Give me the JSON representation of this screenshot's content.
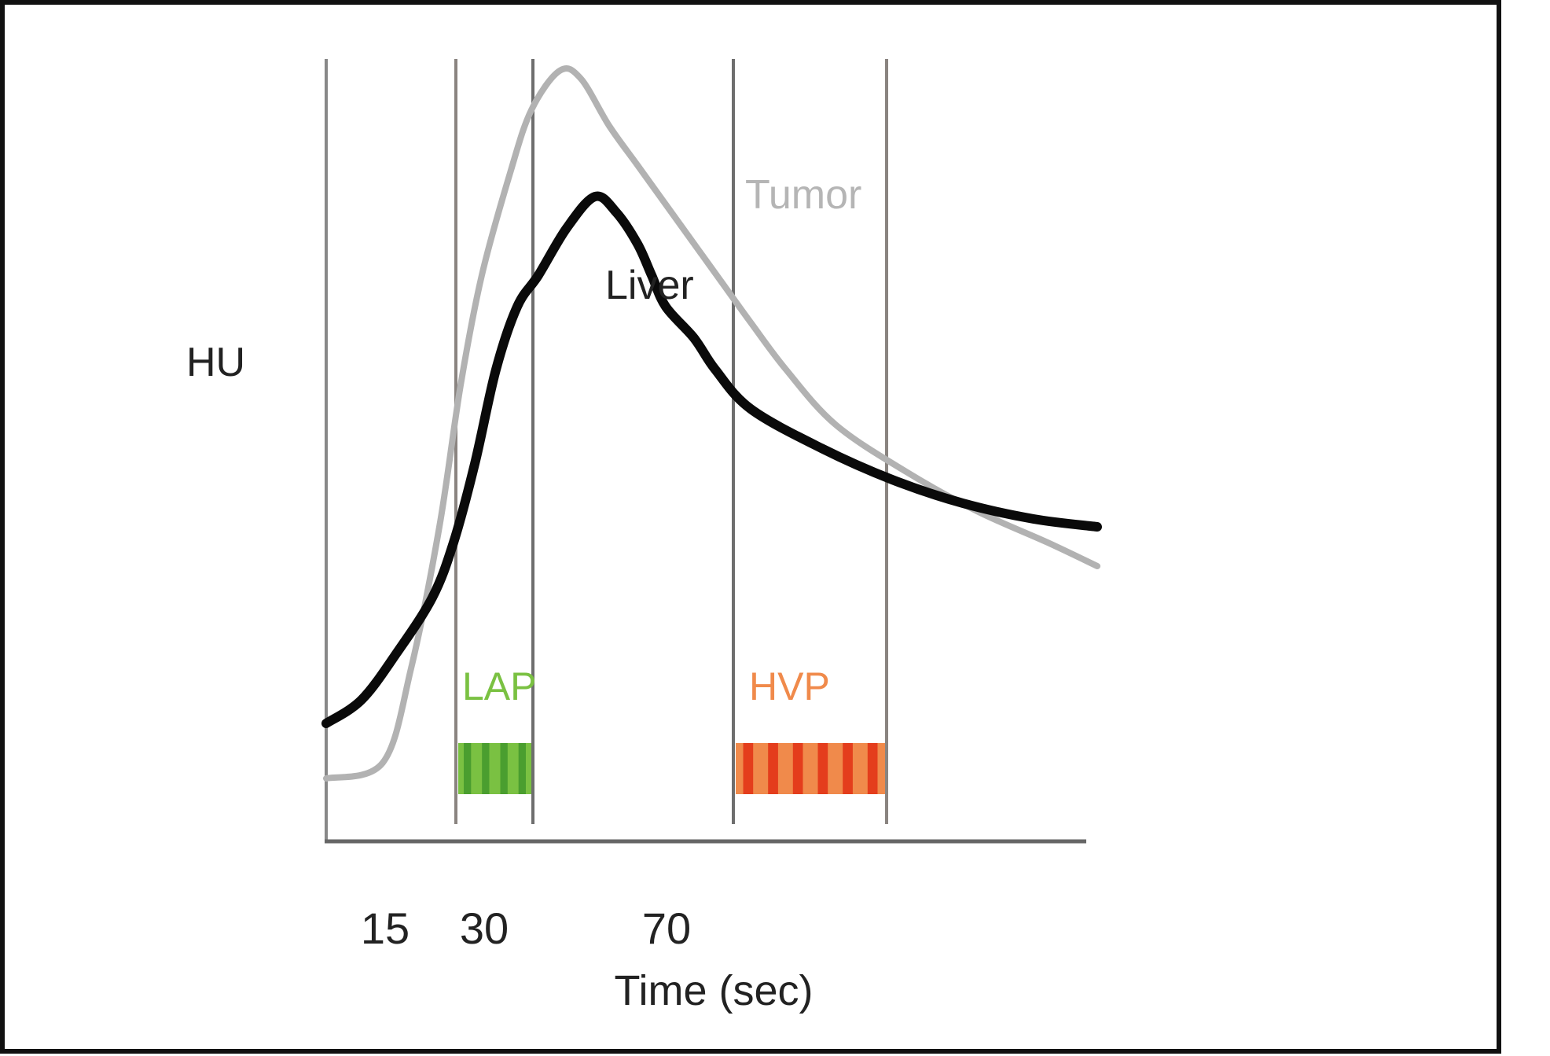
{
  "chart_data": {
    "type": "line",
    "xlabel": "Time (sec)",
    "ylabel": "HU",
    "x_ticks": [
      {
        "label": "15",
        "value": 15
      },
      {
        "label": "30",
        "value": 30
      },
      {
        "label": "70",
        "value": 70
      }
    ],
    "series": [
      {
        "name": "Tumor",
        "color": "#b2b2b2",
        "points": [
          [
            0,
            8
          ],
          [
            8,
            10
          ],
          [
            12,
            22
          ],
          [
            16,
            40
          ],
          [
            19,
            58
          ],
          [
            22,
            72
          ],
          [
            26,
            85
          ],
          [
            29,
            93
          ],
          [
            33,
            98
          ],
          [
            36,
            97
          ],
          [
            40,
            91
          ],
          [
            44,
            86
          ],
          [
            48,
            81
          ],
          [
            52,
            76
          ],
          [
            56,
            71
          ],
          [
            60,
            66
          ],
          [
            65,
            60
          ],
          [
            72,
            53
          ],
          [
            82,
            47
          ],
          [
            92,
            42
          ],
          [
            102,
            38
          ],
          [
            109,
            35
          ]
        ]
      },
      {
        "name": "Liver",
        "color": "#0a0a0a",
        "points": [
          [
            0,
            15
          ],
          [
            5,
            18
          ],
          [
            10,
            24
          ],
          [
            15,
            31
          ],
          [
            18,
            38
          ],
          [
            21,
            48
          ],
          [
            24,
            60
          ],
          [
            27,
            68
          ],
          [
            30,
            72
          ],
          [
            34,
            78
          ],
          [
            38,
            82
          ],
          [
            41,
            80
          ],
          [
            44,
            76
          ],
          [
            46,
            72
          ],
          [
            48,
            68
          ],
          [
            52,
            64
          ],
          [
            55,
            60
          ],
          [
            60,
            55
          ],
          [
            70,
            50
          ],
          [
            80,
            46
          ],
          [
            90,
            43
          ],
          [
            100,
            41
          ],
          [
            109,
            40
          ]
        ]
      }
    ],
    "phases": [
      {
        "label": "LAP",
        "color": "#7ac142",
        "stripe_color": "#4a9e2f"
      },
      {
        "label": "HVP",
        "color": "#f08a4b",
        "stripe_color": "#e43d1c"
      }
    ]
  }
}
